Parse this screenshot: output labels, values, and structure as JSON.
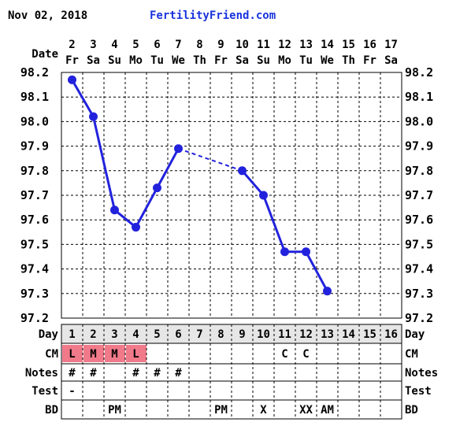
{
  "header": {
    "date": "Nov 02, 2018",
    "brand": "FertilityFriend.com"
  },
  "colors": {
    "line": "#2222dd",
    "brand": "#1a33dd",
    "cm_highlight": "#f07a8a",
    "day_row": "#e6e6e6"
  },
  "labels": {
    "date": "Date",
    "day": "Day",
    "cm": "CM",
    "notes": "Notes",
    "test": "Test",
    "bd": "BD"
  },
  "chart_data": {
    "type": "line",
    "ylim": [
      97.2,
      98.2
    ],
    "y_ticks": [
      "98.2",
      "98.1",
      "98.0",
      "97.9",
      "97.8",
      "97.7",
      "97.6",
      "97.5",
      "97.4",
      "97.3",
      "97.2"
    ],
    "dates": [
      "2",
      "3",
      "4",
      "5",
      "6",
      "7",
      "8",
      "9",
      "10",
      "11",
      "12",
      "13",
      "14",
      "15",
      "16",
      "17"
    ],
    "weekdays": [
      "Fr",
      "Sa",
      "Su",
      "Mo",
      "Tu",
      "We",
      "Th",
      "Fr",
      "Sa",
      "Su",
      "Mo",
      "Tu",
      "We",
      "Th",
      "Fr",
      "Sa"
    ],
    "days": [
      "1",
      "2",
      "3",
      "4",
      "5",
      "6",
      "7",
      "8",
      "9",
      "10",
      "11",
      "12",
      "13",
      "14",
      "15",
      "16"
    ],
    "temperatures": [
      98.17,
      98.02,
      97.64,
      97.57,
      97.73,
      97.89,
      null,
      null,
      97.8,
      97.7,
      97.47,
      97.47,
      97.31,
      null,
      null,
      null
    ],
    "gap_line": {
      "from_day": 6,
      "to_day": 9
    },
    "cm": [
      "L",
      "M",
      "M",
      "L",
      "",
      "",
      "",
      "",
      "",
      "",
      "C",
      "C",
      "",
      "",
      "",
      ""
    ],
    "notes": [
      "#",
      "#",
      "",
      "#",
      "#",
      "#",
      "",
      "",
      "",
      "",
      "",
      "",
      "",
      "",
      "",
      ""
    ],
    "test": [
      "-",
      "",
      "",
      "",
      "",
      "",
      "",
      "",
      "",
      "",
      "",
      "",
      "",
      "",
      "",
      ""
    ],
    "bd": [
      "",
      "",
      "PM",
      "",
      "",
      "",
      "",
      "PM",
      "",
      "X",
      "",
      "XX",
      "AM",
      "",
      "",
      ""
    ]
  }
}
